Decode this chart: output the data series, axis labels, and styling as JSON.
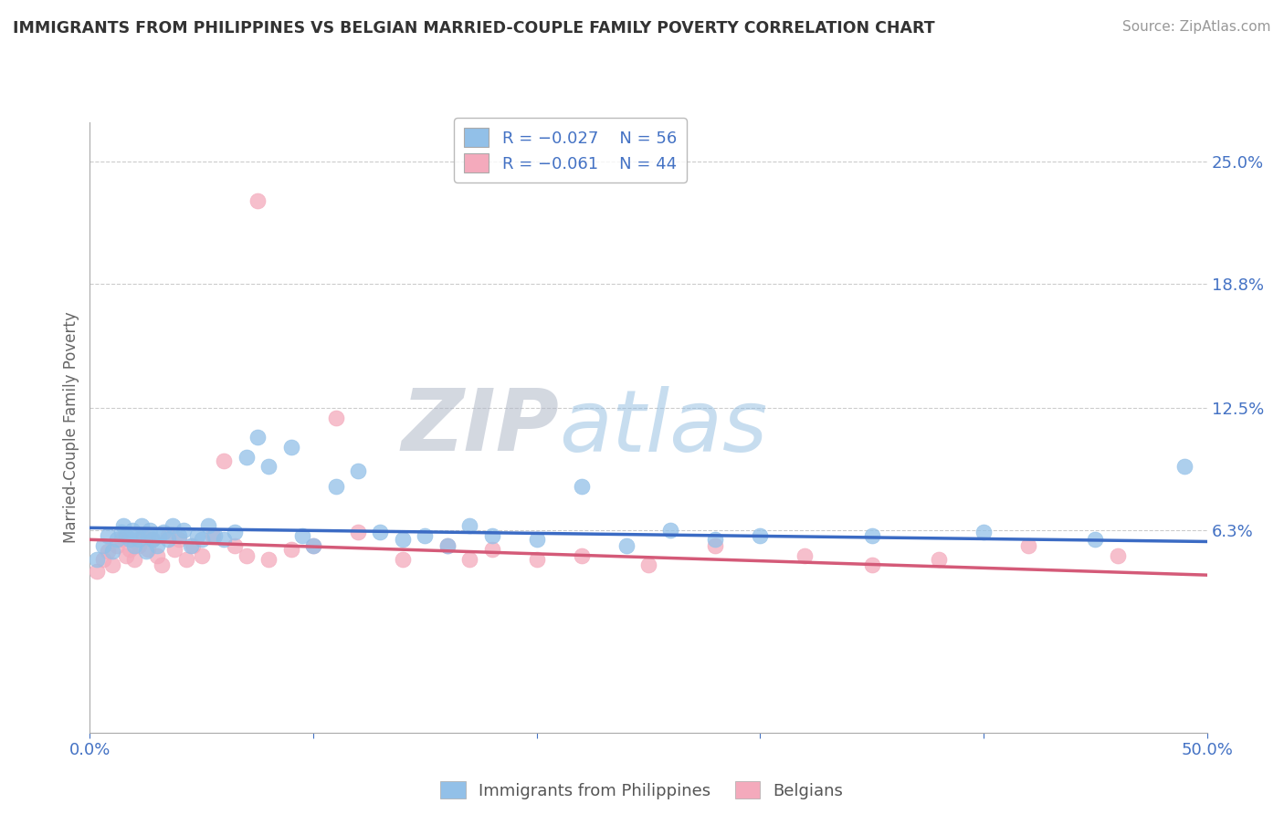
{
  "title": "IMMIGRANTS FROM PHILIPPINES VS BELGIAN MARRIED-COUPLE FAMILY POVERTY CORRELATION CHART",
  "source": "Source: ZipAtlas.com",
  "ylabel": "Married-Couple Family Poverty",
  "xlim": [
    0.0,
    0.5
  ],
  "ylim": [
    -0.04,
    0.27
  ],
  "ytick_positions": [
    0.0,
    0.063,
    0.125,
    0.188,
    0.25
  ],
  "ytick_labels": [
    "",
    "6.3%",
    "12.5%",
    "18.8%",
    "25.0%"
  ],
  "grid_color": "#cccccc",
  "background_color": "#ffffff",
  "blue_color": "#92C0E8",
  "pink_color": "#F4AABC",
  "blue_line_color": "#3B6BC4",
  "pink_line_color": "#D45A78",
  "watermark_zip": "ZIP",
  "watermark_atlas": "atlas",
  "blue_scatter_x": [
    0.003,
    0.006,
    0.008,
    0.01,
    0.012,
    0.014,
    0.015,
    0.016,
    0.018,
    0.019,
    0.02,
    0.021,
    0.022,
    0.023,
    0.025,
    0.026,
    0.027,
    0.028,
    0.03,
    0.031,
    0.033,
    0.035,
    0.037,
    0.04,
    0.042,
    0.045,
    0.048,
    0.05,
    0.053,
    0.056,
    0.06,
    0.065,
    0.07,
    0.075,
    0.08,
    0.09,
    0.095,
    0.1,
    0.11,
    0.12,
    0.13,
    0.14,
    0.15,
    0.16,
    0.17,
    0.18,
    0.2,
    0.22,
    0.24,
    0.26,
    0.28,
    0.3,
    0.35,
    0.4,
    0.45,
    0.49
  ],
  "blue_scatter_y": [
    0.048,
    0.055,
    0.06,
    0.052,
    0.058,
    0.062,
    0.065,
    0.06,
    0.058,
    0.063,
    0.055,
    0.06,
    0.058,
    0.065,
    0.052,
    0.06,
    0.063,
    0.058,
    0.055,
    0.06,
    0.062,
    0.058,
    0.065,
    0.06,
    0.063,
    0.055,
    0.06,
    0.058,
    0.065,
    0.06,
    0.058,
    0.062,
    0.1,
    0.11,
    0.095,
    0.105,
    0.06,
    0.055,
    0.085,
    0.093,
    0.062,
    0.058,
    0.06,
    0.055,
    0.065,
    0.06,
    0.058,
    0.085,
    0.055,
    0.063,
    0.058,
    0.06,
    0.06,
    0.062,
    0.058,
    0.095
  ],
  "pink_scatter_x": [
    0.003,
    0.006,
    0.008,
    0.01,
    0.012,
    0.014,
    0.016,
    0.018,
    0.02,
    0.022,
    0.024,
    0.026,
    0.028,
    0.03,
    0.032,
    0.035,
    0.038,
    0.04,
    0.043,
    0.046,
    0.05,
    0.055,
    0.06,
    0.065,
    0.07,
    0.08,
    0.09,
    0.1,
    0.11,
    0.12,
    0.14,
    0.16,
    0.18,
    0.2,
    0.22,
    0.25,
    0.28,
    0.32,
    0.38,
    0.42,
    0.46,
    0.35,
    0.17,
    0.075
  ],
  "pink_scatter_y": [
    0.042,
    0.048,
    0.052,
    0.045,
    0.055,
    0.058,
    0.05,
    0.053,
    0.048,
    0.055,
    0.06,
    0.053,
    0.058,
    0.05,
    0.045,
    0.06,
    0.053,
    0.058,
    0.048,
    0.055,
    0.05,
    0.06,
    0.098,
    0.055,
    0.05,
    0.048,
    0.053,
    0.055,
    0.12,
    0.062,
    0.048,
    0.055,
    0.053,
    0.048,
    0.05,
    0.045,
    0.055,
    0.05,
    0.048,
    0.055,
    0.05,
    0.045,
    0.048,
    0.23
  ],
  "blue_trend_x": [
    0.0,
    0.5
  ],
  "blue_trend_y": [
    0.064,
    0.057
  ],
  "pink_trend_x": [
    0.0,
    0.5
  ],
  "pink_trend_y": [
    0.058,
    0.04
  ]
}
